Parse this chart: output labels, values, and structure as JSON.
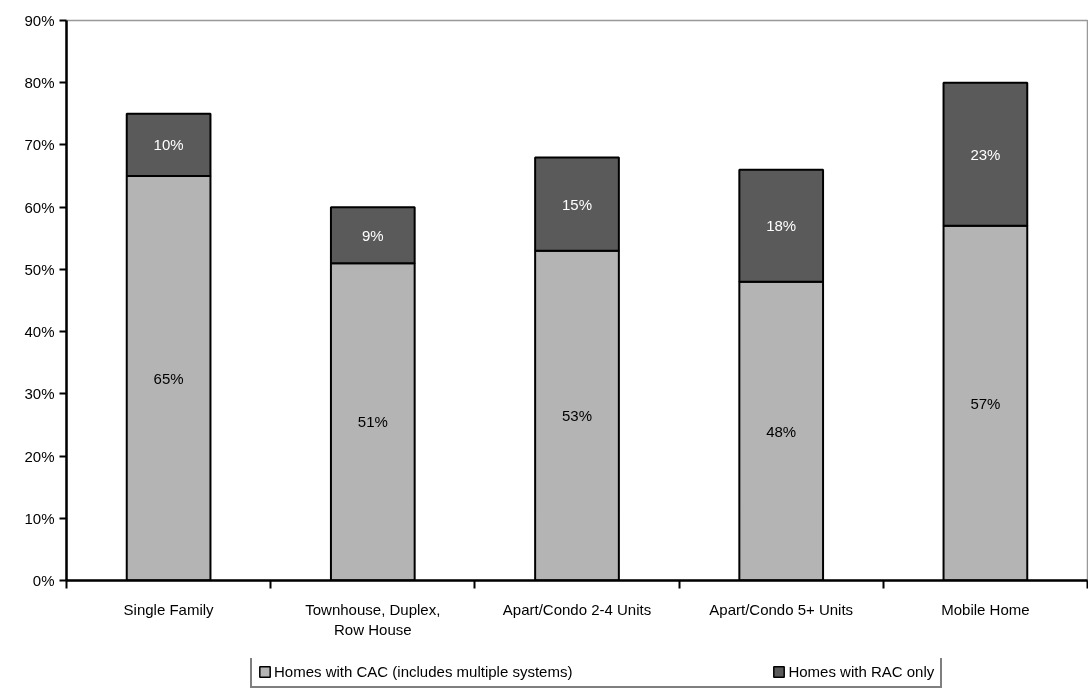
{
  "chart_data": {
    "type": "bar",
    "stacked": true,
    "categories": [
      "Single Family",
      "Townhouse, Duplex, Row House",
      "Apart/Condo 2-4 Units",
      "Apart/Condo 5+ Units",
      "Mobile Home"
    ],
    "series": [
      {
        "name": "Homes with CAC (includes multiple systems)",
        "color": "#b4b4b4",
        "values": [
          65,
          51,
          53,
          48,
          57
        ],
        "value_labels": [
          "65%",
          "51%",
          "53%",
          "48%",
          "57%"
        ]
      },
      {
        "name": "Homes with RAC only",
        "color": "#5a5a5a",
        "values": [
          10,
          9,
          15,
          18,
          23
        ],
        "value_labels": [
          "10%",
          "9%",
          "15%",
          "18%",
          "23%"
        ]
      }
    ],
    "ylim": [
      0,
      90
    ],
    "yticks": [
      {
        "value": 0,
        "label": "0%"
      },
      {
        "value": 10,
        "label": "10%"
      },
      {
        "value": 20,
        "label": "20%"
      },
      {
        "value": 30,
        "label": "30%"
      },
      {
        "value": 40,
        "label": "40%"
      },
      {
        "value": 50,
        "label": "50%"
      },
      {
        "value": 60,
        "label": "60%"
      },
      {
        "value": 70,
        "label": "70%"
      },
      {
        "value": 80,
        "label": "80%"
      },
      {
        "value": 90,
        "label": "90%"
      }
    ],
    "legend": "bottom",
    "grid": false
  }
}
